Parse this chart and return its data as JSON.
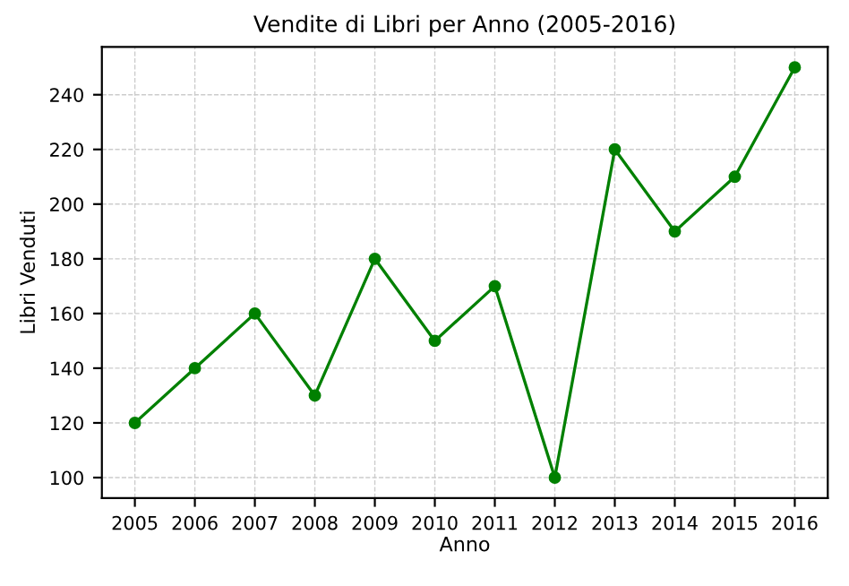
{
  "chart_data": {
    "type": "line",
    "title": "Vendite di Libri per Anno (2005-2016)",
    "xlabel": "Anno",
    "ylabel": "Libri Venduti",
    "x": [
      2005,
      2006,
      2007,
      2008,
      2009,
      2010,
      2011,
      2012,
      2013,
      2014,
      2015,
      2016
    ],
    "series": [
      {
        "color": "#008000",
        "values": [
          120,
          140,
          160,
          130,
          180,
          150,
          170,
          100,
          220,
          190,
          210,
          250
        ]
      }
    ],
    "xlim": [
      2004.45,
      2016.55
    ],
    "xticks": [
      2005,
      2006,
      2007,
      2008,
      2009,
      2010,
      2011,
      2012,
      2013,
      2014,
      2015,
      2016
    ],
    "ylim": [
      92.5,
      257.5
    ],
    "yticks": [
      100,
      120,
      140,
      160,
      180,
      200,
      220,
      240
    ],
    "grid": true,
    "marker": "circle",
    "line_style": "solid"
  }
}
